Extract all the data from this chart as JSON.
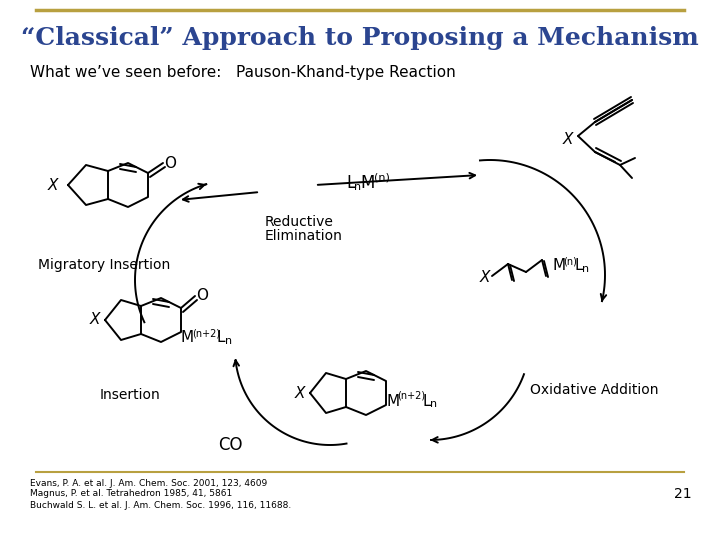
{
  "title": "“Classical” Approach to Proposing a Mechanism",
  "subtitle": "What we’ve seen before:   Pauson-Khand-type Reaction",
  "title_color": "#2B4590",
  "title_fontsize": 18,
  "subtitle_fontsize": 11,
  "bg_color": "#FFFFFF",
  "border_color": "#B8A040",
  "footer_line1": "Evans, P. A. et al. J. Am. Chem. Soc. 2001, 123, 4609",
  "footer_line2": "Magnus, P. et al. Tetrahedron 1985, 41, 5861",
  "footer_line3": "Buchwald S. L. et al. J. Am. Chem. Soc. 1996, 116, 11688.",
  "slide_number": "21",
  "lw": 1.4
}
